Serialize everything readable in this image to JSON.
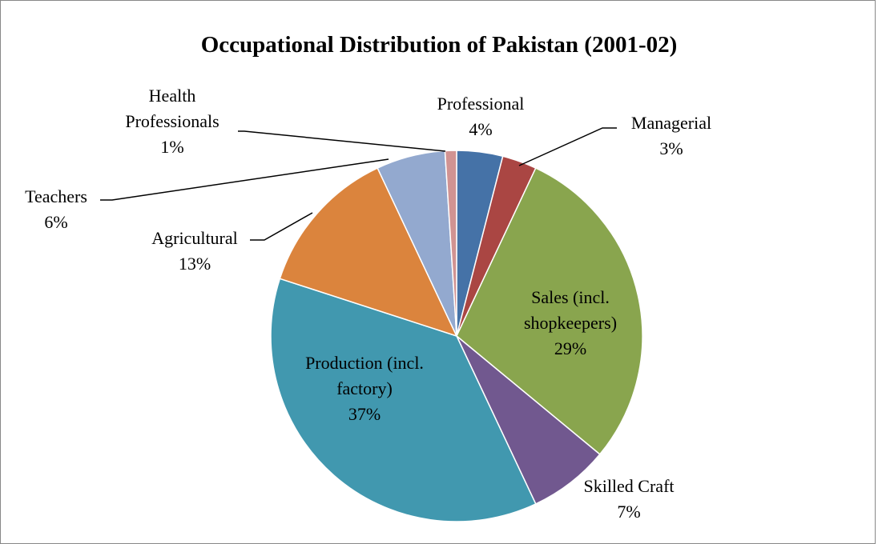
{
  "chart_data": {
    "type": "pie",
    "title": "Occupational Distribution of Pakistan (2001-02)",
    "categories": [
      "Professional",
      "Managerial",
      "Sales (incl. shopkeepers)",
      "Skilled Craft",
      "Production (incl. factory)",
      "Agricultural",
      "Teachers",
      "Health Professionals"
    ],
    "values": [
      4,
      3,
      29,
      7,
      37,
      13,
      6,
      1
    ],
    "value_labels": [
      "4%",
      "3%",
      "29%",
      "7%",
      "37%",
      "13%",
      "6%",
      "1%"
    ],
    "colors": [
      "#4572a7",
      "#aa4643",
      "#89a54e",
      "#71588f",
      "#4198af",
      "#db843d",
      "#93a9cf",
      "#d19392"
    ]
  }
}
